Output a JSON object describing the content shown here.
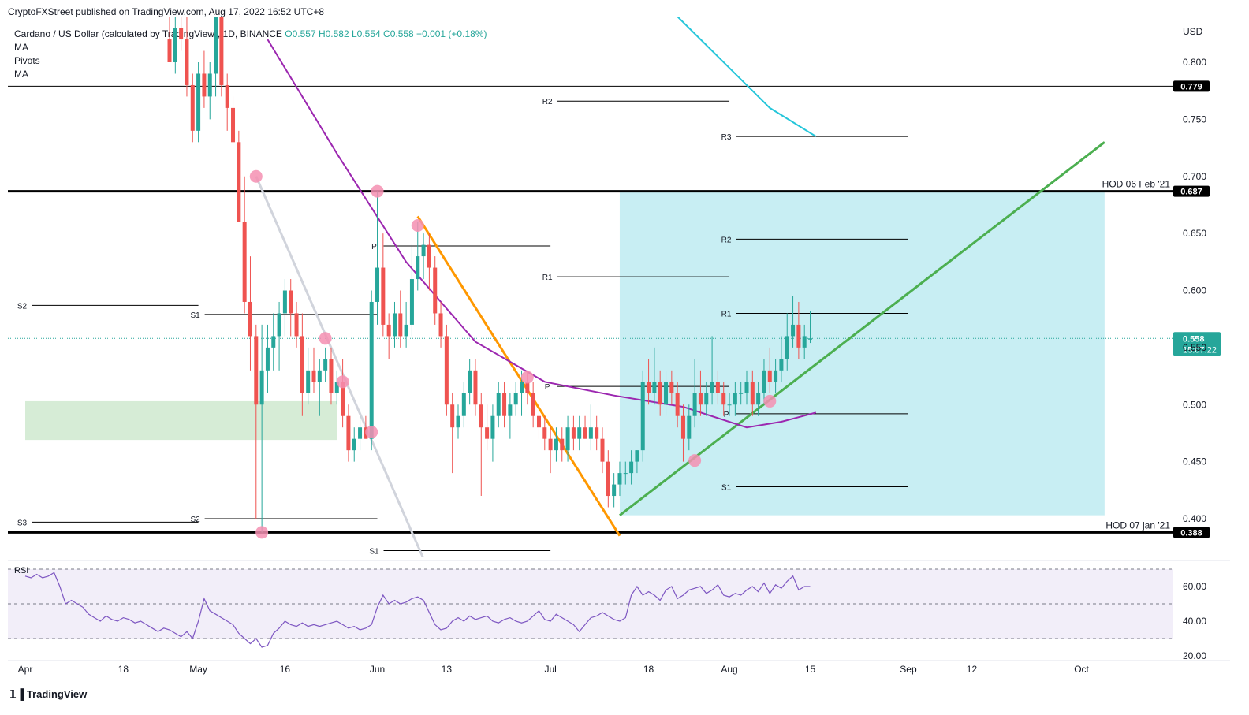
{
  "header": {
    "published": "CryptoFXStreet published on TradingView.com, Aug 17, 2022 16:52 UTC+8"
  },
  "legend": {
    "symbol": "Cardano / US Dollar (calculated by TradingView), 1D, BINANCE",
    "ohlc": "O0.557  H0.582  L0.554  C0.558  +0.001 (+0.18%)",
    "indicators": [
      "MA",
      "Pivots",
      "MA"
    ]
  },
  "footer": {
    "brand": "TradingView",
    "logo_icon": "tradingview-logo-icon"
  },
  "colors": {
    "up": "#26a69a",
    "down": "#ef5350",
    "ma_fast": "#9c27b0",
    "ma_slow": "#26c6da",
    "trend_up": "#4caf50",
    "trend_down": "#ff9800",
    "trend_old": "#d1d4dc",
    "zone_fill": "#c8eef3",
    "demand_fill": "#d6ecd6",
    "rsi_line": "#7e57c2",
    "touch_circle": "#f48fb1",
    "price_tag": "#26a69a",
    "level_tag": "#000000"
  },
  "chart_data": {
    "type": "candlestick",
    "currency": "USD",
    "y_ticks": [
      0.8,
      0.75,
      0.7,
      0.65,
      0.6,
      0.55,
      0.5,
      0.45,
      0.4
    ],
    "y_tick_labels": [
      "0.800",
      "0.750",
      "0.700",
      "0.650",
      "0.600",
      "0.550",
      "0.500",
      "0.450",
      "0.400"
    ],
    "ylim": [
      0.37,
      0.83
    ],
    "x_tick_labels": [
      "Apr",
      "18",
      "May",
      "16",
      "Jun",
      "13",
      "Jul",
      "18",
      "Aug",
      "15",
      "Sep",
      "12",
      "Oct"
    ],
    "x_tick_dates": [
      "2022-04-01",
      "2022-04-18",
      "2022-05-01",
      "2022-05-16",
      "2022-06-01",
      "2022-06-13",
      "2022-07-01",
      "2022-07-18",
      "2022-08-01",
      "2022-08-15",
      "2022-09-01",
      "2022-09-12",
      "2022-10-01"
    ],
    "candles_start": "2022-04-26",
    "candles": [
      [
        0.82,
        0.85,
        0.8,
        0.8
      ],
      [
        0.8,
        0.84,
        0.79,
        0.83
      ],
      [
        0.83,
        0.86,
        0.81,
        0.82
      ],
      [
        0.82,
        0.84,
        0.77,
        0.78
      ],
      [
        0.78,
        0.79,
        0.73,
        0.74
      ],
      [
        0.74,
        0.8,
        0.73,
        0.79
      ],
      [
        0.79,
        0.81,
        0.76,
        0.77
      ],
      [
        0.77,
        0.8,
        0.75,
        0.79
      ],
      [
        0.79,
        0.87,
        0.77,
        0.84
      ],
      [
        0.84,
        0.86,
        0.77,
        0.78
      ],
      [
        0.78,
        0.79,
        0.74,
        0.76
      ],
      [
        0.76,
        0.77,
        0.73,
        0.73
      ],
      [
        0.73,
        0.74,
        0.66,
        0.66
      ],
      [
        0.66,
        0.7,
        0.58,
        0.59
      ],
      [
        0.59,
        0.63,
        0.53,
        0.56
      ],
      [
        0.56,
        0.57,
        0.4,
        0.5
      ],
      [
        0.5,
        0.57,
        0.388,
        0.53
      ],
      [
        0.53,
        0.57,
        0.51,
        0.55
      ],
      [
        0.55,
        0.58,
        0.53,
        0.56
      ],
      [
        0.56,
        0.59,
        0.53,
        0.58
      ],
      [
        0.58,
        0.61,
        0.56,
        0.6
      ],
      [
        0.6,
        0.61,
        0.56,
        0.58
      ],
      [
        0.58,
        0.59,
        0.55,
        0.56
      ],
      [
        0.56,
        0.58,
        0.49,
        0.51
      ],
      [
        0.51,
        0.55,
        0.5,
        0.53
      ],
      [
        0.53,
        0.55,
        0.51,
        0.52
      ],
      [
        0.52,
        0.54,
        0.49,
        0.53
      ],
      [
        0.53,
        0.55,
        0.52,
        0.54
      ],
      [
        0.54,
        0.55,
        0.5,
        0.51
      ],
      [
        0.51,
        0.53,
        0.5,
        0.52
      ],
      [
        0.52,
        0.54,
        0.48,
        0.49
      ],
      [
        0.49,
        0.5,
        0.45,
        0.46
      ],
      [
        0.46,
        0.48,
        0.45,
        0.47
      ],
      [
        0.47,
        0.49,
        0.46,
        0.48
      ],
      [
        0.48,
        0.49,
        0.47,
        0.47
      ],
      [
        0.47,
        0.6,
        0.46,
        0.59
      ],
      [
        0.59,
        0.687,
        0.57,
        0.62
      ],
      [
        0.62,
        0.65,
        0.56,
        0.57
      ],
      [
        0.57,
        0.58,
        0.54,
        0.56
      ],
      [
        0.56,
        0.59,
        0.55,
        0.58
      ],
      [
        0.58,
        0.6,
        0.55,
        0.56
      ],
      [
        0.56,
        0.59,
        0.55,
        0.57
      ],
      [
        0.57,
        0.64,
        0.56,
        0.61
      ],
      [
        0.61,
        0.66,
        0.6,
        0.63
      ],
      [
        0.63,
        0.65,
        0.61,
        0.64
      ],
      [
        0.64,
        0.65,
        0.6,
        0.62
      ],
      [
        0.62,
        0.63,
        0.57,
        0.58
      ],
      [
        0.58,
        0.59,
        0.55,
        0.56
      ],
      [
        0.56,
        0.57,
        0.49,
        0.5
      ],
      [
        0.5,
        0.51,
        0.44,
        0.48
      ],
      [
        0.48,
        0.5,
        0.47,
        0.49
      ],
      [
        0.49,
        0.52,
        0.48,
        0.51
      ],
      [
        0.51,
        0.54,
        0.5,
        0.53
      ],
      [
        0.53,
        0.54,
        0.49,
        0.5
      ],
      [
        0.5,
        0.51,
        0.42,
        0.48
      ],
      [
        0.48,
        0.5,
        0.46,
        0.47
      ],
      [
        0.47,
        0.5,
        0.45,
        0.49
      ],
      [
        0.49,
        0.52,
        0.48,
        0.51
      ],
      [
        0.51,
        0.52,
        0.48,
        0.49
      ],
      [
        0.49,
        0.51,
        0.47,
        0.5
      ],
      [
        0.5,
        0.52,
        0.49,
        0.51
      ],
      [
        0.51,
        0.53,
        0.49,
        0.52
      ],
      [
        0.52,
        0.53,
        0.5,
        0.51
      ],
      [
        0.51,
        0.52,
        0.48,
        0.49
      ],
      [
        0.49,
        0.5,
        0.47,
        0.48
      ],
      [
        0.48,
        0.49,
        0.46,
        0.47
      ],
      [
        0.47,
        0.48,
        0.44,
        0.46
      ],
      [
        0.46,
        0.48,
        0.45,
        0.47
      ],
      [
        0.47,
        0.48,
        0.45,
        0.46
      ],
      [
        0.46,
        0.49,
        0.45,
        0.48
      ],
      [
        0.48,
        0.49,
        0.46,
        0.47
      ],
      [
        0.47,
        0.49,
        0.46,
        0.48
      ],
      [
        0.48,
        0.49,
        0.47,
        0.47
      ],
      [
        0.47,
        0.5,
        0.46,
        0.48
      ],
      [
        0.48,
        0.49,
        0.46,
        0.47
      ],
      [
        0.47,
        0.48,
        0.44,
        0.45
      ],
      [
        0.45,
        0.46,
        0.41,
        0.42
      ],
      [
        0.42,
        0.44,
        0.41,
        0.43
      ],
      [
        0.43,
        0.45,
        0.42,
        0.44
      ],
      [
        0.44,
        0.45,
        0.43,
        0.44
      ],
      [
        0.44,
        0.46,
        0.43,
        0.45
      ],
      [
        0.45,
        0.46,
        0.44,
        0.46
      ],
      [
        0.46,
        0.53,
        0.45,
        0.52
      ],
      [
        0.52,
        0.54,
        0.5,
        0.51
      ],
      [
        0.51,
        0.55,
        0.5,
        0.52
      ],
      [
        0.52,
        0.53,
        0.49,
        0.5
      ],
      [
        0.5,
        0.53,
        0.49,
        0.52
      ],
      [
        0.52,
        0.53,
        0.5,
        0.51
      ],
      [
        0.51,
        0.52,
        0.48,
        0.49
      ],
      [
        0.49,
        0.5,
        0.45,
        0.47
      ],
      [
        0.47,
        0.5,
        0.46,
        0.49
      ],
      [
        0.49,
        0.54,
        0.48,
        0.51
      ],
      [
        0.51,
        0.53,
        0.49,
        0.5
      ],
      [
        0.5,
        0.52,
        0.49,
        0.51
      ],
      [
        0.51,
        0.56,
        0.5,
        0.52
      ],
      [
        0.52,
        0.53,
        0.5,
        0.51
      ],
      [
        0.51,
        0.52,
        0.49,
        0.5
      ],
      [
        0.5,
        0.51,
        0.49,
        0.5
      ],
      [
        0.5,
        0.52,
        0.49,
        0.51
      ],
      [
        0.51,
        0.52,
        0.5,
        0.51
      ],
      [
        0.51,
        0.53,
        0.5,
        0.52
      ],
      [
        0.52,
        0.53,
        0.49,
        0.5
      ],
      [
        0.5,
        0.52,
        0.49,
        0.51
      ],
      [
        0.51,
        0.54,
        0.5,
        0.53
      ],
      [
        0.53,
        0.55,
        0.51,
        0.52
      ],
      [
        0.52,
        0.54,
        0.51,
        0.53
      ],
      [
        0.53,
        0.56,
        0.52,
        0.54
      ],
      [
        0.54,
        0.58,
        0.53,
        0.56
      ],
      [
        0.56,
        0.595,
        0.55,
        0.57
      ],
      [
        0.57,
        0.59,
        0.54,
        0.55
      ],
      [
        0.55,
        0.57,
        0.54,
        0.56
      ],
      [
        0.557,
        0.582,
        0.554,
        0.558
      ]
    ],
    "ma50": [
      [
        "2022-05-13",
        0.82
      ],
      [
        "2022-05-25",
        0.72
      ],
      [
        "2022-06-06",
        0.625
      ],
      [
        "2022-06-18",
        0.555
      ],
      [
        "2022-06-30",
        0.52
      ],
      [
        "2022-07-12",
        0.508
      ],
      [
        "2022-07-24",
        0.498
      ],
      [
        "2022-08-04",
        0.48
      ],
      [
        "2022-08-10",
        0.485
      ],
      [
        "2022-08-16",
        0.493
      ]
    ],
    "ma200": [
      [
        "2022-07-23",
        0.84
      ],
      [
        "2022-08-01",
        0.795
      ],
      [
        "2022-08-08",
        0.76
      ],
      [
        "2022-08-16",
        0.735
      ]
    ],
    "trendlines": [
      {
        "name": "descending-old",
        "from": [
          "2022-05-11",
          0.7
        ],
        "to": [
          "2022-06-09",
          0.365
        ]
      },
      {
        "name": "descending",
        "from": [
          "2022-06-08",
          0.665
        ],
        "to": [
          "2022-07-13",
          0.385
        ]
      },
      {
        "name": "ascending",
        "from": [
          "2022-07-13",
          0.403
        ],
        "to": [
          "2022-10-05",
          0.73
        ]
      }
    ],
    "horizontal_levels": [
      {
        "value": 0.779,
        "label": "0.779",
        "weight": 1
      },
      {
        "value": 0.687,
        "label": "0.687",
        "annotation": "HOD 06 Feb '21",
        "weight": 3
      },
      {
        "value": 0.388,
        "label": "0.388",
        "annotation": "HOD 07 jan '21",
        "weight": 3
      }
    ],
    "current_price": {
      "value": 0.558,
      "label": "0.558",
      "countdown": "15:07:22"
    },
    "pivots": [
      {
        "label": "S2",
        "value": 0.587,
        "from": "2022-04-01",
        "to": "2022-05-01"
      },
      {
        "label": "S3",
        "value": 0.397,
        "from": "2022-04-01",
        "to": "2022-05-01"
      },
      {
        "label": "S1",
        "value": 0.579,
        "from": "2022-05-01",
        "to": "2022-06-01"
      },
      {
        "label": "S2",
        "value": 0.4,
        "from": "2022-05-01",
        "to": "2022-06-01"
      },
      {
        "label": "P",
        "value": 0.639,
        "from": "2022-06-01",
        "to": "2022-07-01"
      },
      {
        "label": "S1",
        "value": 0.372,
        "from": "2022-06-01",
        "to": "2022-07-01"
      },
      {
        "label": "R2",
        "value": 0.766,
        "from": "2022-07-01",
        "to": "2022-08-01"
      },
      {
        "label": "R1",
        "value": 0.612,
        "from": "2022-07-01",
        "to": "2022-08-01"
      },
      {
        "label": "P",
        "value": 0.516,
        "from": "2022-07-01",
        "to": "2022-08-01"
      },
      {
        "label": "R3",
        "value": 0.735,
        "from": "2022-08-01",
        "to": "2022-09-01"
      },
      {
        "label": "R2",
        "value": 0.645,
        "from": "2022-08-01",
        "to": "2022-09-01"
      },
      {
        "label": "R1",
        "value": 0.58,
        "from": "2022-08-01",
        "to": "2022-09-01"
      },
      {
        "label": "P",
        "value": 0.492,
        "from": "2022-08-01",
        "to": "2022-09-01"
      },
      {
        "label": "S1",
        "value": 0.428,
        "from": "2022-08-01",
        "to": "2022-09-01"
      }
    ],
    "zones": [
      {
        "name": "target-zone",
        "from": "2022-07-13",
        "to": "2022-10-05",
        "top": 0.687,
        "bottom": 0.403
      },
      {
        "name": "demand-zone",
        "from": "2022-04-01",
        "to": "2022-05-25",
        "top": 0.503,
        "bottom": 0.469
      }
    ],
    "touch_points": [
      [
        "2022-05-11",
        0.7
      ],
      [
        "2022-05-12",
        0.388
      ],
      [
        "2022-05-23",
        0.558
      ],
      [
        "2022-05-26",
        0.52
      ],
      [
        "2022-05-31",
        0.476
      ],
      [
        "2022-06-01",
        0.687
      ],
      [
        "2022-06-08",
        0.657
      ],
      [
        "2022-06-27",
        0.524
      ],
      [
        "2022-07-26",
        0.451
      ],
      [
        "2022-08-08",
        0.503
      ]
    ],
    "rsi": {
      "label": "RSI",
      "levels": [
        70,
        50,
        30
      ],
      "y_tick_labels": [
        "60.00",
        "40.00",
        "20.00"
      ],
      "y_ticks": [
        60,
        40,
        20
      ],
      "ylim": [
        18,
        73
      ],
      "start": "2022-04-01",
      "values": [
        66,
        65,
        67,
        65,
        66,
        68,
        60,
        50,
        52,
        50,
        48,
        44,
        42,
        40,
        43,
        41,
        40,
        42,
        41,
        39,
        40,
        38,
        36,
        34,
        36,
        35,
        33,
        31,
        34,
        30,
        40,
        53,
        46,
        44,
        42,
        40,
        38,
        33,
        30,
        27,
        30,
        25,
        26,
        33,
        36,
        40,
        38,
        37,
        39,
        37,
        38,
        37,
        38,
        39,
        40,
        38,
        36,
        37,
        35,
        36,
        38,
        48,
        55,
        50,
        52,
        50,
        51,
        53,
        54,
        52,
        45,
        38,
        35,
        36,
        40,
        42,
        40,
        43,
        41,
        42,
        43,
        40,
        39,
        41,
        42,
        40,
        39,
        40,
        43,
        46,
        41,
        40,
        44,
        42,
        40,
        38,
        34,
        38,
        42,
        43,
        45,
        43,
        41,
        40,
        42,
        55,
        60,
        55,
        57,
        55,
        52,
        58,
        60,
        53,
        55,
        58,
        59,
        60,
        56,
        58,
        61,
        55,
        54,
        56,
        55,
        58,
        60,
        57,
        62,
        56,
        61,
        59,
        63,
        66,
        58,
        60,
        60
      ]
    }
  }
}
